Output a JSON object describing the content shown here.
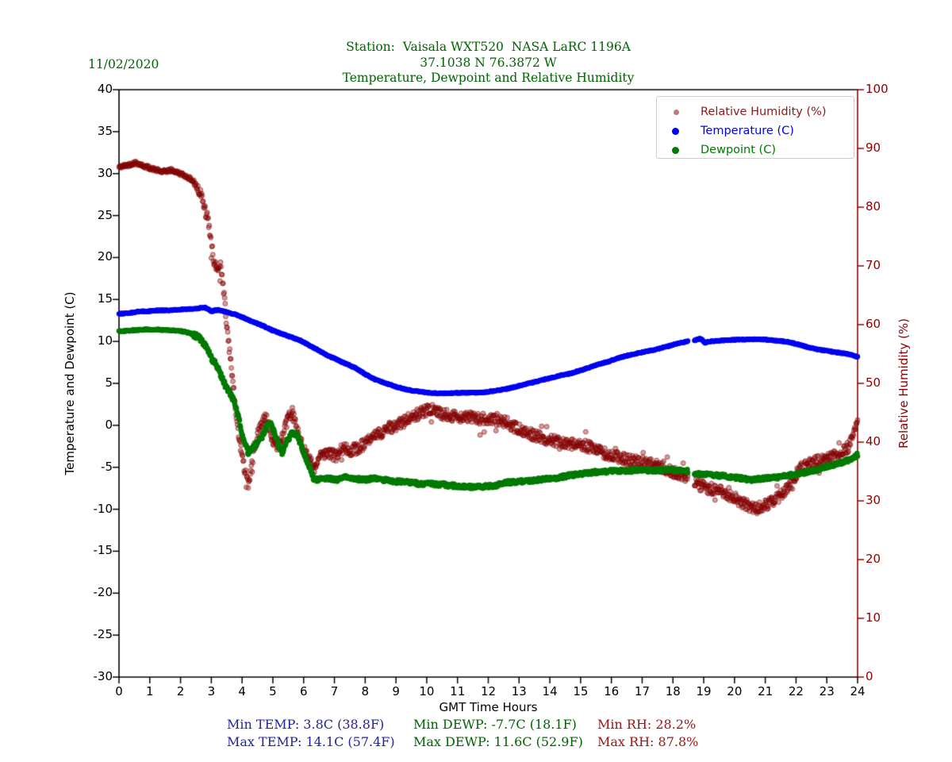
{
  "header": {
    "date": "11/02/2020",
    "title_line1": "Station:  Vaisala WXT520  NASA LaRC 1196A",
    "title_line2": "37.1038 N 76.3872 W",
    "title_line3": "Temperature, Dewpoint and Relative Humidity",
    "title_color": "#006400"
  },
  "legend": {
    "items": [
      {
        "label": "Relative Humidity (%)",
        "text_color": "#8b1a1a",
        "dot_color": "#bc7a7a"
      },
      {
        "label": "Temperature (C)",
        "text_color": "#0000f0",
        "dot_color": "#0000f0"
      },
      {
        "label": "Dewpoint (C)",
        "text_color": "#007a00",
        "dot_color": "#007a00"
      }
    ]
  },
  "footer": {
    "min_temp": "Min TEMP: 3.8C (38.8F)",
    "max_temp": "Max TEMP: 14.1C (57.4F)",
    "min_dewp": "Min DEWP: -7.7C (18.1F)",
    "max_dewp": "Max DEWP: 11.6C (52.9F)",
    "min_rh": "Min RH: 28.2%",
    "max_rh": "Max RH: 87.8%",
    "temp_color": "#22229b",
    "dewp_color": "#006400",
    "rh_color": "#9b1515"
  },
  "chart_data": {
    "type": "scatter",
    "title": "Station: Vaisala WXT520 NASA LaRC 1196A — Temperature, Dewpoint and Relative Humidity — 11/02/2020",
    "xlabel": "GMT Time Hours",
    "ylabel_left": "Temperature and Dewpoint (C)",
    "ylabel_right": "Relative Humidity (%)",
    "x_range": [
      0,
      24
    ],
    "y_left_range": [
      -30,
      40
    ],
    "y_right_range": [
      0,
      100
    ],
    "x_ticks": [
      0,
      1,
      2,
      3,
      4,
      5,
      6,
      7,
      8,
      9,
      10,
      11,
      12,
      13,
      14,
      15,
      16,
      17,
      18,
      19,
      20,
      21,
      22,
      23,
      24
    ],
    "y_left_ticks": [
      40,
      35,
      30,
      25,
      20,
      15,
      10,
      5,
      0,
      -5,
      -10,
      -15,
      -20,
      -25,
      -30
    ],
    "y_right_ticks": [
      100,
      90,
      80,
      70,
      60,
      50,
      40,
      30,
      20,
      10,
      0
    ],
    "grid": false,
    "legend_position": "upper right",
    "sample_interval_minutes": 1,
    "data_gap_hours": [
      18.5,
      18.7
    ],
    "axis_colors": {
      "left": "#000000",
      "bottom": "#000000",
      "top": "#000000",
      "right": "#8b0000"
    },
    "series": [
      {
        "name": "Relative Humidity (%)",
        "axis": "right",
        "color": "#8b0000",
        "marker_alpha": 0.4,
        "summary": {
          "min": 28.2,
          "max": 87.8
        },
        "keypoints": [
          [
            0,
            86.8
          ],
          [
            0.3,
            87.2
          ],
          [
            0.55,
            87.6
          ],
          [
            0.8,
            87.0
          ],
          [
            1.1,
            86.5
          ],
          [
            1.4,
            86.0
          ],
          [
            1.7,
            86.3
          ],
          [
            2.0,
            85.7
          ],
          [
            2.2,
            85.2
          ],
          [
            2.4,
            84.5
          ],
          [
            2.6,
            83.0
          ],
          [
            2.75,
            80.5
          ],
          [
            2.9,
            77.5
          ],
          [
            3.0,
            73.5
          ],
          [
            3.1,
            70.5
          ],
          [
            3.2,
            69.5
          ],
          [
            3.3,
            69.8
          ],
          [
            3.4,
            66.0
          ],
          [
            3.5,
            60.0
          ],
          [
            3.6,
            55.0
          ],
          [
            3.7,
            50.0
          ],
          [
            3.8,
            45.0
          ],
          [
            3.9,
            40.5
          ],
          [
            4.0,
            37.8
          ],
          [
            4.1,
            35.0
          ],
          [
            4.2,
            32.5
          ],
          [
            4.3,
            35.5
          ],
          [
            4.45,
            40.0
          ],
          [
            4.6,
            43.0
          ],
          [
            4.75,
            44.5
          ],
          [
            4.9,
            42.0
          ],
          [
            5.05,
            39.8
          ],
          [
            5.2,
            39.5
          ],
          [
            5.35,
            41.5
          ],
          [
            5.5,
            44.0
          ],
          [
            5.62,
            45.2
          ],
          [
            5.75,
            43.0
          ],
          [
            5.9,
            40.2
          ],
          [
            6.05,
            38.4
          ],
          [
            6.2,
            36.8
          ],
          [
            6.35,
            35.8
          ],
          [
            6.5,
            37.3
          ],
          [
            6.7,
            38.3
          ],
          [
            6.9,
            37.8
          ],
          [
            7.1,
            37.5
          ],
          [
            7.3,
            39.3
          ],
          [
            7.5,
            38.6
          ],
          [
            7.7,
            38.9
          ],
          [
            7.9,
            39.4
          ],
          [
            8.1,
            40.2
          ],
          [
            8.4,
            41.2
          ],
          [
            8.7,
            42.3
          ],
          [
            9.0,
            42.8
          ],
          [
            9.3,
            43.6
          ],
          [
            9.6,
            44.5
          ],
          [
            9.9,
            45.2
          ],
          [
            10.2,
            45.5
          ],
          [
            10.5,
            44.8
          ],
          [
            10.8,
            44.5
          ],
          [
            11.1,
            44.3
          ],
          [
            11.4,
            44.2
          ],
          [
            11.7,
            44.0
          ],
          [
            12.0,
            43.9
          ],
          [
            12.3,
            43.6
          ],
          [
            12.6,
            43.3
          ],
          [
            12.9,
            42.4
          ],
          [
            13.2,
            41.8
          ],
          [
            13.5,
            41.2
          ],
          [
            13.8,
            40.6
          ],
          [
            14.1,
            40.3
          ],
          [
            14.4,
            40.0
          ],
          [
            14.7,
            39.7
          ],
          [
            15.0,
            39.5
          ],
          [
            15.3,
            39.2
          ],
          [
            15.6,
            38.5
          ],
          [
            15.9,
            37.8
          ],
          [
            16.2,
            37.4
          ],
          [
            16.5,
            37.0
          ],
          [
            16.8,
            36.7
          ],
          [
            17.1,
            36.4
          ],
          [
            17.4,
            36.1
          ],
          [
            17.7,
            35.6
          ],
          [
            18.0,
            35.0
          ],
          [
            18.2,
            34.4
          ],
          [
            18.45,
            33.8
          ],
          [
            18.7,
            33.0
          ],
          [
            19.0,
            32.3
          ],
          [
            19.3,
            32.0
          ],
          [
            19.6,
            31.5
          ],
          [
            19.9,
            30.8
          ],
          [
            20.2,
            29.8
          ],
          [
            20.5,
            29.0
          ],
          [
            20.7,
            28.6
          ],
          [
            21.0,
            29.2
          ],
          [
            21.3,
            30.2
          ],
          [
            21.6,
            31.5
          ],
          [
            21.9,
            33.5
          ],
          [
            22.1,
            35.3
          ],
          [
            22.3,
            36.0
          ],
          [
            22.6,
            36.6
          ],
          [
            22.9,
            36.9
          ],
          [
            23.2,
            37.5
          ],
          [
            23.5,
            38.3
          ],
          [
            23.7,
            39.2
          ],
          [
            23.85,
            40.8
          ],
          [
            23.95,
            43.0
          ],
          [
            24,
            44.0
          ]
        ]
      },
      {
        "name": "Temperature (C)",
        "axis": "left",
        "color": "#0202f0",
        "marker_alpha": 1,
        "summary": {
          "min": 3.8,
          "max": 14.1
        },
        "keypoints": [
          [
            0,
            13.3
          ],
          [
            0.3,
            13.35
          ],
          [
            0.7,
            13.6
          ],
          [
            1.0,
            13.6
          ],
          [
            1.3,
            13.7
          ],
          [
            1.6,
            13.7
          ],
          [
            2.0,
            13.8
          ],
          [
            2.3,
            13.85
          ],
          [
            2.6,
            13.95
          ],
          [
            2.8,
            14.05
          ],
          [
            3.0,
            13.6
          ],
          [
            3.2,
            13.75
          ],
          [
            3.4,
            13.6
          ],
          [
            3.6,
            13.4
          ],
          [
            3.8,
            13.2
          ],
          [
            4.0,
            12.9
          ],
          [
            4.3,
            12.4
          ],
          [
            4.6,
            12.0
          ],
          [
            5.0,
            11.3
          ],
          [
            5.3,
            10.9
          ],
          [
            5.6,
            10.5
          ],
          [
            5.9,
            10.1
          ],
          [
            6.2,
            9.5
          ],
          [
            6.5,
            8.9
          ],
          [
            6.8,
            8.3
          ],
          [
            7.1,
            7.8
          ],
          [
            7.4,
            7.3
          ],
          [
            7.7,
            6.8
          ],
          [
            8.0,
            6.1
          ],
          [
            8.3,
            5.5
          ],
          [
            8.6,
            5.1
          ],
          [
            9.0,
            4.6
          ],
          [
            9.3,
            4.3
          ],
          [
            9.6,
            4.1
          ],
          [
            9.9,
            3.95
          ],
          [
            10.2,
            3.85
          ],
          [
            10.5,
            3.8
          ],
          [
            10.9,
            3.85
          ],
          [
            11.3,
            3.9
          ],
          [
            11.7,
            3.9
          ],
          [
            12.0,
            4.0
          ],
          [
            12.3,
            4.15
          ],
          [
            12.6,
            4.35
          ],
          [
            12.9,
            4.6
          ],
          [
            13.2,
            4.9
          ],
          [
            13.5,
            5.15
          ],
          [
            13.8,
            5.45
          ],
          [
            14.1,
            5.7
          ],
          [
            14.4,
            6.0
          ],
          [
            14.7,
            6.2
          ],
          [
            15.0,
            6.55
          ],
          [
            15.3,
            6.9
          ],
          [
            15.6,
            7.3
          ],
          [
            15.9,
            7.6
          ],
          [
            16.2,
            8.0
          ],
          [
            16.5,
            8.3
          ],
          [
            16.8,
            8.55
          ],
          [
            17.1,
            8.8
          ],
          [
            17.4,
            9.0
          ],
          [
            17.7,
            9.3
          ],
          [
            18.0,
            9.6
          ],
          [
            18.2,
            9.8
          ],
          [
            18.45,
            10.0
          ],
          [
            18.7,
            10.1
          ],
          [
            18.9,
            10.35
          ],
          [
            19.05,
            9.85
          ],
          [
            19.2,
            10.0
          ],
          [
            19.5,
            10.1
          ],
          [
            19.8,
            10.15
          ],
          [
            20.1,
            10.2
          ],
          [
            20.5,
            10.25
          ],
          [
            20.9,
            10.25
          ],
          [
            21.2,
            10.15
          ],
          [
            21.5,
            10.05
          ],
          [
            21.8,
            9.9
          ],
          [
            22.1,
            9.6
          ],
          [
            22.4,
            9.3
          ],
          [
            22.7,
            9.05
          ],
          [
            23.0,
            8.9
          ],
          [
            23.3,
            8.7
          ],
          [
            23.6,
            8.55
          ],
          [
            23.8,
            8.4
          ],
          [
            24,
            8.15
          ]
        ]
      },
      {
        "name": "Dewpoint (C)",
        "axis": "left",
        "color": "#027a02",
        "marker_alpha": 1,
        "summary": {
          "min": -7.7,
          "max": 11.6
        },
        "keypoints": [
          [
            0,
            11.2
          ],
          [
            0.4,
            11.3
          ],
          [
            0.8,
            11.4
          ],
          [
            1.2,
            11.4
          ],
          [
            1.6,
            11.35
          ],
          [
            2.0,
            11.25
          ],
          [
            2.3,
            11.0
          ],
          [
            2.6,
            10.5
          ],
          [
            2.8,
            9.6
          ],
          [
            3.0,
            8.0
          ],
          [
            3.2,
            7.0
          ],
          [
            3.35,
            5.6
          ],
          [
            3.5,
            4.4
          ],
          [
            3.65,
            3.6
          ],
          [
            3.8,
            2.2
          ],
          [
            3.9,
            0.6
          ],
          [
            4.0,
            -1.0
          ],
          [
            4.1,
            -2.3
          ],
          [
            4.2,
            -3.3
          ],
          [
            4.35,
            -2.7
          ],
          [
            4.5,
            -2.0
          ],
          [
            4.65,
            -1.3
          ],
          [
            4.8,
            -0.1
          ],
          [
            4.95,
            0.3
          ],
          [
            5.05,
            -0.9
          ],
          [
            5.2,
            -2.5
          ],
          [
            5.3,
            -3.2
          ],
          [
            5.45,
            -2.0
          ],
          [
            5.6,
            -1.0
          ],
          [
            5.75,
            -0.9
          ],
          [
            5.9,
            -2.2
          ],
          [
            6.05,
            -3.6
          ],
          [
            6.2,
            -5.0
          ],
          [
            6.35,
            -6.6
          ],
          [
            6.5,
            -6.3
          ],
          [
            6.8,
            -6.3
          ],
          [
            7.1,
            -6.5
          ],
          [
            7.4,
            -6.1
          ],
          [
            7.7,
            -6.4
          ],
          [
            8.0,
            -6.5
          ],
          [
            8.3,
            -6.3
          ],
          [
            8.6,
            -6.5
          ],
          [
            9.0,
            -6.7
          ],
          [
            9.4,
            -6.8
          ],
          [
            9.8,
            -7.0
          ],
          [
            10.2,
            -7.0
          ],
          [
            10.6,
            -7.1
          ],
          [
            11.0,
            -7.25
          ],
          [
            11.4,
            -7.35
          ],
          [
            11.8,
            -7.3
          ],
          [
            12.2,
            -7.2
          ],
          [
            12.6,
            -6.8
          ],
          [
            13.0,
            -6.7
          ],
          [
            13.4,
            -6.6
          ],
          [
            13.8,
            -6.4
          ],
          [
            14.2,
            -6.3
          ],
          [
            14.6,
            -6.0
          ],
          [
            15.0,
            -5.8
          ],
          [
            15.4,
            -5.6
          ],
          [
            15.8,
            -5.5
          ],
          [
            16.2,
            -5.4
          ],
          [
            16.6,
            -5.4
          ],
          [
            17.0,
            -5.3
          ],
          [
            17.4,
            -5.4
          ],
          [
            17.8,
            -5.3
          ],
          [
            18.1,
            -5.3
          ],
          [
            18.45,
            -5.4
          ],
          [
            18.7,
            -5.7
          ],
          [
            19.0,
            -5.8
          ],
          [
            19.3,
            -5.9
          ],
          [
            19.6,
            -6.0
          ],
          [
            19.9,
            -6.2
          ],
          [
            20.2,
            -6.3
          ],
          [
            20.5,
            -6.5
          ],
          [
            20.8,
            -6.4
          ],
          [
            21.1,
            -6.3
          ],
          [
            21.4,
            -6.2
          ],
          [
            21.7,
            -6.0
          ],
          [
            22.0,
            -5.8
          ],
          [
            22.3,
            -5.6
          ],
          [
            22.6,
            -5.4
          ],
          [
            22.9,
            -5.0
          ],
          [
            23.2,
            -4.7
          ],
          [
            23.5,
            -4.4
          ],
          [
            23.8,
            -4.0
          ],
          [
            24,
            -3.5
          ]
        ]
      }
    ]
  }
}
